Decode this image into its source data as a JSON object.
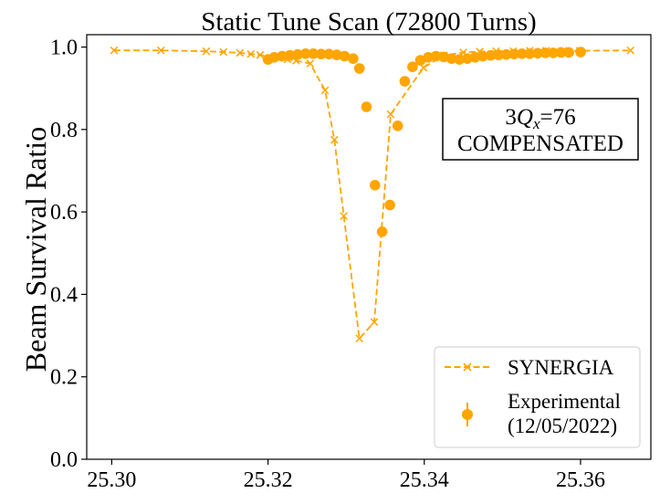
{
  "chart_data": {
    "type": "scatter",
    "title": "Static Tune Scan (72800 Turns)",
    "xlabel": "",
    "ylabel": "Beam Survival Ratio",
    "xlim": [
      25.2968,
      25.369
    ],
    "ylim": [
      0.0,
      1.03
    ],
    "xticks": [
      "25.30",
      "25.32",
      "25.34",
      "25.36"
    ],
    "xtick_values": [
      25.3,
      25.32,
      25.34,
      25.36
    ],
    "yticks": [
      "0.0",
      "0.2",
      "0.4",
      "0.6",
      "0.8",
      "1.0"
    ],
    "ytick_values": [
      0.0,
      0.2,
      0.4,
      0.6,
      0.8,
      1.0
    ],
    "grid": false,
    "legend_position": "lower-right",
    "annotation": {
      "line1_prefix": "3",
      "line1_var": "Q",
      "line1_sub": "x",
      "line1_rest": "=76",
      "line2": "COMPENSATED"
    },
    "series": [
      {
        "name": "SYNERGIA",
        "style": "dashed-line-x-marker",
        "color": "#FFA500",
        "x": [
          25.3003,
          25.3063,
          25.3121,
          25.3143,
          25.3164,
          25.3178,
          25.319,
          25.3208,
          25.3225,
          25.3236,
          25.3254,
          25.3273,
          25.3285,
          25.3297,
          25.3317,
          25.3336,
          25.3357,
          25.3399,
          25.3425,
          25.345,
          25.3471,
          25.3492,
          25.3514,
          25.3535,
          25.3556,
          25.3578,
          25.3599,
          25.3664
        ],
        "y": [
          0.992,
          0.992,
          0.99,
          0.988,
          0.986,
          0.983,
          0.981,
          0.975,
          0.97,
          0.967,
          0.96,
          0.895,
          0.775,
          0.59,
          0.293,
          0.333,
          0.837,
          0.95,
          0.98,
          0.987,
          0.989,
          0.99,
          0.99,
          0.991,
          0.991,
          0.991,
          0.991,
          0.992
        ]
      },
      {
        "name": "Experimental\n(12/05/2022)",
        "legend_line1": "Experimental",
        "legend_line2": "(12/05/2022)",
        "style": "points-with-errorbars",
        "color": "#FFA500",
        "x": [
          25.32,
          25.3208,
          25.3218,
          25.3228,
          25.3238,
          25.3248,
          25.3258,
          25.3268,
          25.3278,
          25.3288,
          25.3298,
          25.3309,
          25.3317,
          25.3326,
          25.3337,
          25.3346,
          25.3356,
          25.3366,
          25.3375,
          25.3385,
          25.3395,
          25.3405,
          25.3415,
          25.3425,
          25.3435,
          25.3445,
          25.3455,
          25.3465,
          25.3475,
          25.3485,
          25.3495,
          25.3505,
          25.3515,
          25.3525,
          25.3535,
          25.3545,
          25.3555,
          25.3565,
          25.3575,
          25.3585,
          25.36
        ],
        "y": [
          0.97,
          0.975,
          0.978,
          0.98,
          0.982,
          0.984,
          0.984,
          0.983,
          0.983,
          0.981,
          0.978,
          0.972,
          0.948,
          0.855,
          0.665,
          0.552,
          0.617,
          0.809,
          0.917,
          0.952,
          0.968,
          0.975,
          0.978,
          0.976,
          0.972,
          0.97,
          0.972,
          0.975,
          0.978,
          0.98,
          0.981,
          0.982,
          0.983,
          0.984,
          0.984,
          0.985,
          0.986,
          0.986,
          0.987,
          0.987,
          0.988
        ]
      }
    ]
  }
}
